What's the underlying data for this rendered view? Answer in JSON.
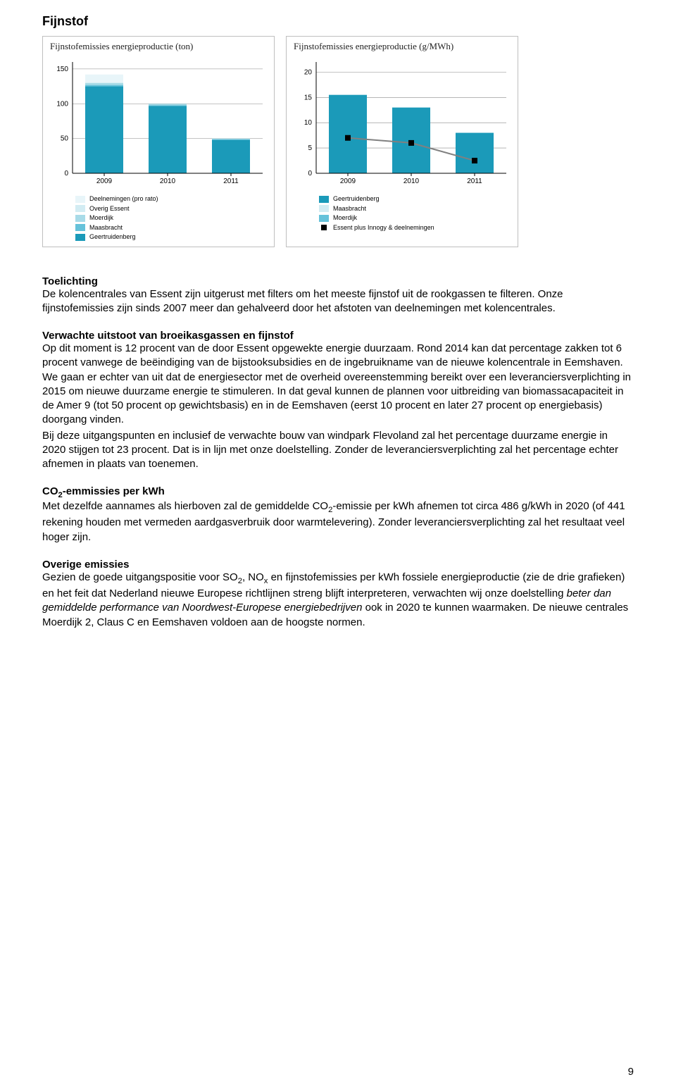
{
  "section_title": "Fijnstof",
  "chart1": {
    "type": "stacked-bar",
    "title": "Fijnstofemissies energieproductie (ton)",
    "categories": [
      "2009",
      "2010",
      "2011"
    ],
    "yticks": [
      0,
      50,
      100,
      150
    ],
    "ylim": [
      0,
      160
    ],
    "series": [
      {
        "key": "geertruidenberg",
        "label": "Geertruidenberg",
        "color": "#1b9ab9",
        "values": [
          125,
          97,
          48
        ]
      },
      {
        "key": "maasbracht",
        "label": "Maasbracht",
        "color": "#66c2da",
        "values": [
          2,
          1,
          1
        ]
      },
      {
        "key": "moerdijk",
        "label": "Moerdijk",
        "color": "#a8dbe8",
        "values": [
          3,
          2,
          1
        ]
      },
      {
        "key": "overig_essent",
        "label": "Overig Essent",
        "color": "#d2ecf3",
        "values": [
          0,
          0,
          0
        ]
      },
      {
        "key": "deelnemingen",
        "label": "Deelnemingen (pro rato)",
        "color": "#e8f5f9",
        "values": [
          12,
          0,
          0
        ]
      }
    ],
    "legend_order": [
      "deelnemingen",
      "overig_essent",
      "moerdijk",
      "maasbracht",
      "geertruidenberg"
    ],
    "axis_color": "#000000",
    "grid_color": "#8a8a8a",
    "background_color": "#ffffff",
    "bar_width": 0.6
  },
  "chart2": {
    "type": "bar+line",
    "title": "Fijnstofemissies energieproductie (g/MWh)",
    "categories": [
      "2009",
      "2010",
      "2011"
    ],
    "yticks": [
      0,
      5,
      10,
      15,
      20
    ],
    "ylim": [
      0,
      22
    ],
    "bars": [
      {
        "key": "geertruidenberg",
        "label": "Geertruidenberg",
        "color": "#1b9ab9",
        "values": [
          15.5,
          13.0,
          8.0
        ]
      },
      {
        "key": "maasbracht",
        "label": "Maasbracht",
        "color": "#d2ecf3",
        "values": [
          0,
          0,
          0
        ]
      },
      {
        "key": "moerdijk",
        "label": "Moerdijk",
        "color": "#66c2da",
        "values": [
          0,
          0,
          0
        ]
      }
    ],
    "line": {
      "key": "essent_plus",
      "label": "Essent plus Innogy & deelnemingen",
      "color": "#808080",
      "marker": "square",
      "marker_color": "#000000",
      "values": [
        7.0,
        6.0,
        2.5
      ]
    },
    "legend_order_bars": [
      "geertruidenberg",
      "maasbracht",
      "moerdijk"
    ],
    "axis_color": "#000000",
    "grid_color": "#8a8a8a",
    "background_color": "#ffffff",
    "bar_width": 0.6
  },
  "body": {
    "toelichting_heading": "Toelichting",
    "toelichting_p1": "De kolencentrales van Essent zijn uitgerust met filters om het meeste fijnstof uit de rookgassen te filteren. Onze fijnstofemissies zijn sinds 2007 meer dan gehalveerd door het afstoten van deelnemingen met kolencentrales.",
    "verwachte_heading": "Verwachte uitstoot van broeikasgassen en fijnstof",
    "verwachte_p1": "Op dit moment is 12 procent van de door Essent opgewekte energie duurzaam. Rond 2014 kan dat percentage zakken tot 6 procent vanwege de beëindiging van de bijstooksubsidies en de ingebruikname van de nieuwe kolencentrale in Eemshaven. We gaan er echter van uit dat de energiesector met de overheid overeenstemming bereikt over een leveranciersverplichting in 2015 om nieuwe duurzame energie te stimuleren. In dat geval kunnen de plannen voor uitbreiding van biomassacapaciteit in de Amer 9 (tot 50 procent op gewichtsbasis) en in de Eemshaven (eerst 10 procent en later 27 procent op energiebasis) doorgang vinden.",
    "verwachte_p2": "Bij deze uitgangspunten en inclusief de verwachte bouw van windpark Flevoland zal het percentage duurzame energie in 2020 stijgen tot 23 procent. Dat is in lijn met onze doelstelling. Zonder de leveranciersverplichting zal het percentage echter afnemen in plaats van toenemen.",
    "co2_heading_prefix": "CO",
    "co2_heading_sub": "2",
    "co2_heading_suffix": "-emmissies per kWh",
    "co2_p1_a": "Met dezelfde aannames als hierboven zal de gemiddelde CO",
    "co2_p1_sub": "2",
    "co2_p1_b": "-emissie per kWh afnemen tot circa 486 g/kWh in 2020 (of 441 rekening houden met vermeden aardgasverbruik door warmtelevering). Zonder leveranciersverplichting zal het resultaat veel hoger zijn.",
    "overige_heading": "Overige emissies",
    "overige_p1_a": "Gezien de goede uitgangspositie voor SO",
    "overige_p1_sub1": "2",
    "overige_p1_b": ", NO",
    "overige_p1_sub2": "x",
    "overige_p1_c": " en fijnstofemissies per kWh fossiele energieproductie (zie de drie grafieken) en het feit dat Nederland nieuwe Europese richtlijnen streng blijft interpreteren, verwachten wij onze doelstelling ",
    "overige_p1_italic": "beter dan gemiddelde performance van Noordwest-Europese energiebedrijven",
    "overige_p1_d": " ook in 2020 te kunnen waarmaken. De nieuwe centrales Moerdijk 2, Claus C en Eemshaven voldoen aan de hoogste normen."
  },
  "page_number": "9"
}
